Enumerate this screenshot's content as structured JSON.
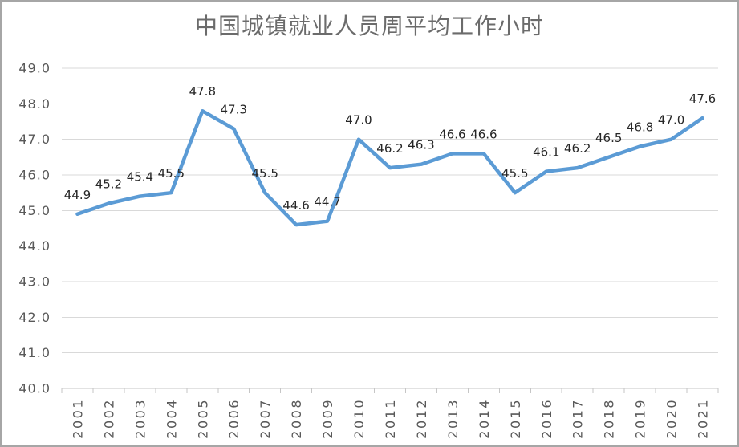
{
  "frame": {
    "background": "#ffffff",
    "border_color": "#a6a6a6"
  },
  "chart_data": {
    "type": "line",
    "title": "中国城镇就业人员周平均工作小时",
    "categories": [
      "2001",
      "2002",
      "2003",
      "2004",
      "2005",
      "2006",
      "2007",
      "2008",
      "2009",
      "2010",
      "2011",
      "2012",
      "2013",
      "2014",
      "2015",
      "2016",
      "2017",
      "2018",
      "2019",
      "2020",
      "2021"
    ],
    "values": [
      44.9,
      45.2,
      45.4,
      45.5,
      47.8,
      47.3,
      45.5,
      44.6,
      44.7,
      47.0,
      46.2,
      46.3,
      46.6,
      46.6,
      45.5,
      46.1,
      46.2,
      46.5,
      46.8,
      47.0,
      47.6
    ],
    "xlabel": "",
    "ylabel": "",
    "ylim": [
      40.0,
      49.0
    ],
    "ytick_step": 1.0,
    "value_decimals": 1,
    "grid": true,
    "legend": "none",
    "data_labels": "above",
    "x_tick_rotation": -90,
    "colors": {
      "line": "#5B9BD5",
      "grid": "#D9D9D9",
      "axis": "#C6C6C6",
      "title_text": "#6B6B6B",
      "axis_text": "#595959",
      "data_label_text": "#262626"
    }
  }
}
